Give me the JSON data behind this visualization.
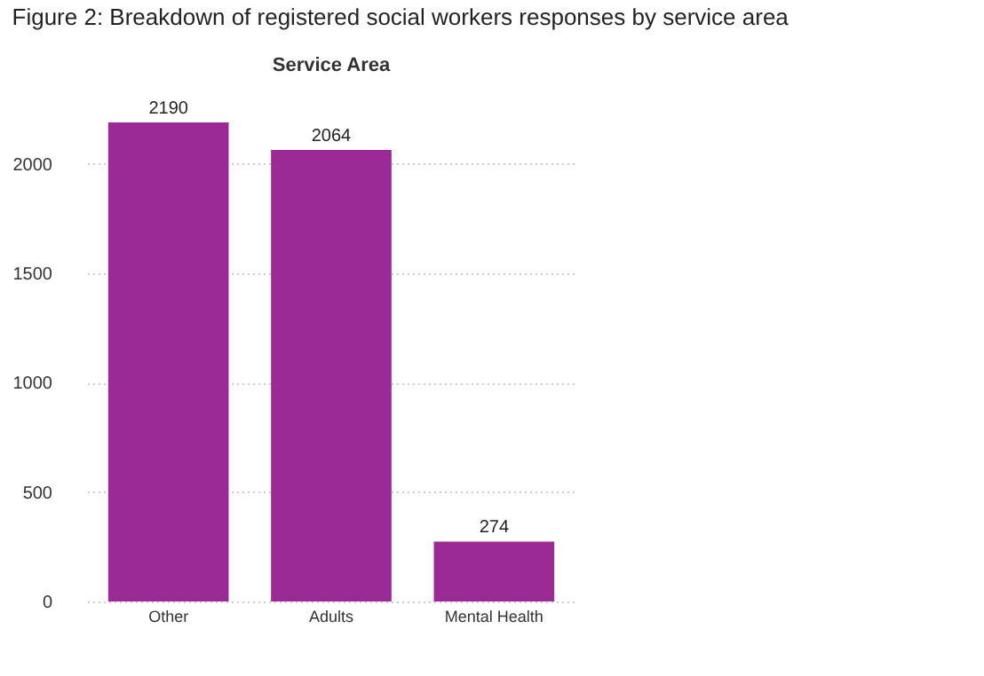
{
  "chart_data": {
    "type": "bar",
    "title": "Figure 2: Breakdown of registered social workers responses by service area",
    "subtitle": "Service Area",
    "categories": [
      "Other",
      "Adults",
      "Mental Health"
    ],
    "values": [
      2190,
      2064,
      274
    ],
    "color": "#9c2a96",
    "ylim": [
      0,
      2190
    ],
    "yticks": [
      0,
      500,
      1000,
      1500,
      2000
    ],
    "grid": "y",
    "data_labels": true
  }
}
